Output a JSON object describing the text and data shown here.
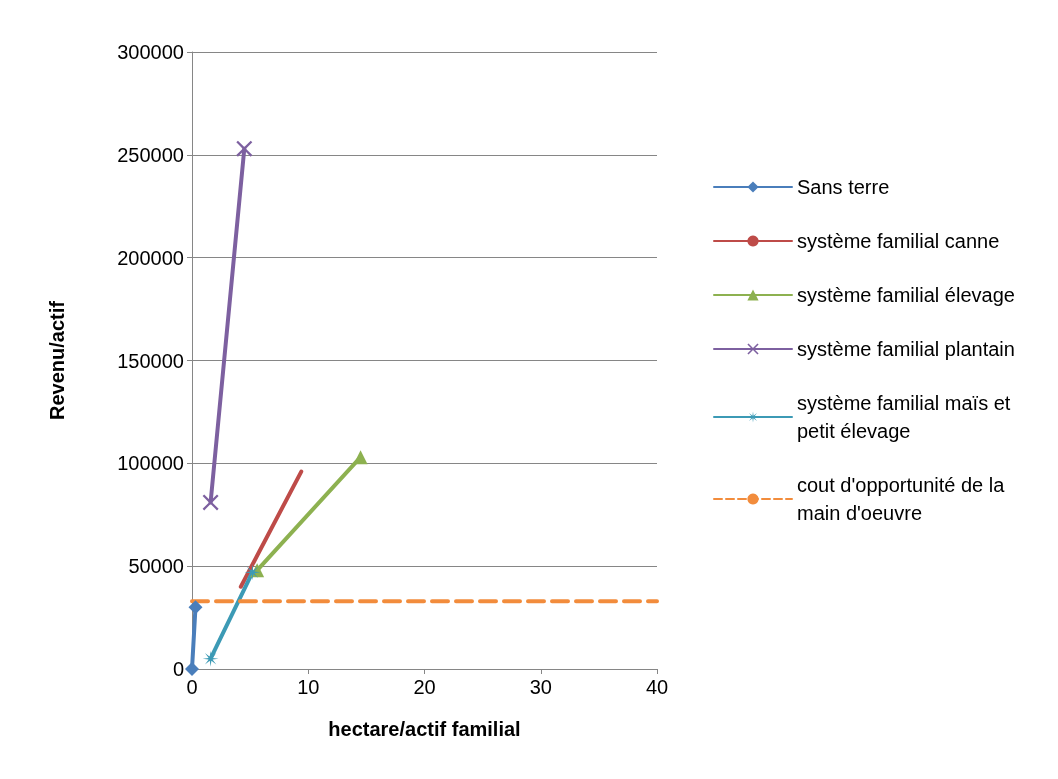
{
  "chart_data": {
    "type": "line",
    "xlabel": "hectare/actif familial",
    "ylabel": "Revenu/actif",
    "xlim": [
      0,
      40
    ],
    "xticks": [
      0,
      10,
      20,
      30,
      40
    ],
    "ylim": [
      0,
      300000
    ],
    "yticks": [
      0,
      50000,
      100000,
      150000,
      200000,
      250000,
      300000
    ],
    "grid": "y",
    "legend": "right",
    "series": [
      {
        "name": "Sans terre",
        "color": "#4a7ebb",
        "x": [
          0,
          0.3
        ],
        "values": [
          0,
          30000
        ],
        "marker": "diamond"
      },
      {
        "name": "système familial canne",
        "color": "#be4b48",
        "x": [
          4.2,
          9.4
        ],
        "values": [
          40000,
          96000
        ],
        "marker": "none"
      },
      {
        "name": "système familial élevage",
        "color": "#8db150",
        "x": [
          5.6,
          14.5
        ],
        "values": [
          48000,
          103000
        ],
        "marker": "triangle"
      },
      {
        "name": "système familial plantain",
        "color": "#7d60a0",
        "x": [
          1.6,
          4.5
        ],
        "values": [
          81000,
          253000
        ],
        "marker": "cross"
      },
      {
        "name": "système familial maïs et petit élevage",
        "color": "#3c9ab5",
        "x": [
          1.6,
          5.2
        ],
        "values": [
          5000,
          47000
        ],
        "marker": "star"
      },
      {
        "name": "cout d'opportunité de la main d'oeuvre",
        "color": "#f28c3c",
        "x": [
          0,
          40
        ],
        "values": [
          33000,
          33000
        ],
        "marker": "none",
        "line_style": "dashed"
      }
    ]
  }
}
